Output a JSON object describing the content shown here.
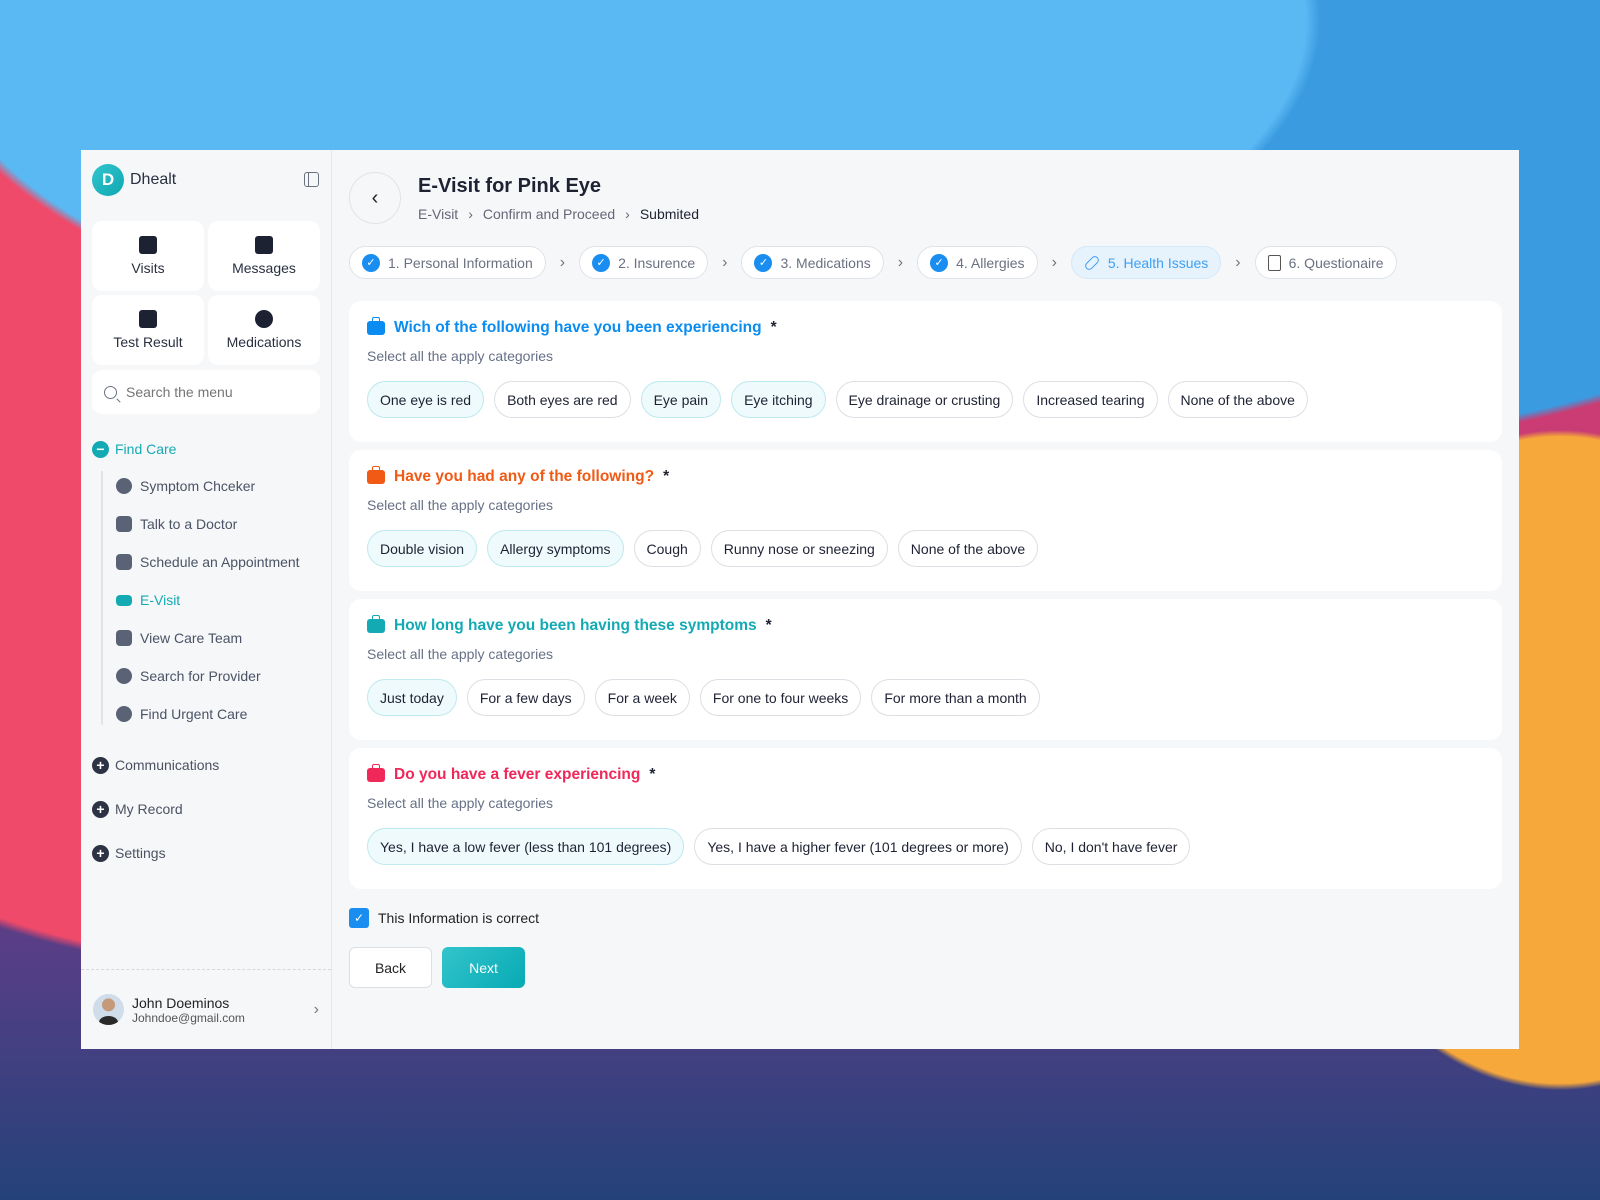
{
  "colors": {
    "accent": "#14aab4",
    "blue": "#1a8ef0",
    "q1": "#0a8cf0",
    "q2": "#f05a14",
    "q3": "#14aab4",
    "q4": "#f0285a"
  },
  "sidebar": {
    "brand": "Dhealt",
    "brand_initial": "D",
    "tiles": [
      {
        "label": "Visits",
        "icon": "calendar-icon"
      },
      {
        "label": "Messages",
        "icon": "envelope-icon"
      },
      {
        "label": "Test Result",
        "icon": "document-icon"
      },
      {
        "label": "Medications",
        "icon": "plus-circle-icon"
      }
    ],
    "search_placeholder": "Search the menu",
    "find_care": "Find Care",
    "items": [
      {
        "label": "Symptom Chceker",
        "icon": "accessibility-icon"
      },
      {
        "label": "Talk to a Doctor",
        "icon": "phone-icon"
      },
      {
        "label": "Schedule an Appointment",
        "icon": "calendar-icon"
      },
      {
        "label": "E-Visit",
        "icon": "card-icon",
        "active": true
      },
      {
        "label": "View Care Team",
        "icon": "users-icon"
      },
      {
        "label": "Search for Provider",
        "icon": "search-icon"
      },
      {
        "label": "Find Urgent Care",
        "icon": "location-icon"
      }
    ],
    "sections": [
      "Communications",
      "My Record",
      "Settings"
    ],
    "user": {
      "name": "John Doeminos",
      "email": "Johndoe@gmail.com"
    }
  },
  "header": {
    "title": "E-Visit for Pink Eye",
    "breadcrumb": [
      "E-Visit",
      "Confirm and Proceed",
      "Submited"
    ]
  },
  "steps": [
    {
      "label": "1. Personal Information",
      "state": "done"
    },
    {
      "label": "2. Insurence",
      "state": "done"
    },
    {
      "label": "3. Medications",
      "state": "done"
    },
    {
      "label": "4. Allergies",
      "state": "done"
    },
    {
      "label": "5. Health Issues",
      "state": "current"
    },
    {
      "label": "6. Questionaire",
      "state": "todo"
    }
  ],
  "questions": [
    {
      "title": "Wich of the following have you been experiencing",
      "color": "#0a8cf0",
      "hint": "Select all the apply categories",
      "options": [
        {
          "label": "One eye is red",
          "selected": true
        },
        {
          "label": "Both eyes are red",
          "selected": false
        },
        {
          "label": "Eye pain",
          "selected": true
        },
        {
          "label": "Eye itching",
          "selected": true
        },
        {
          "label": "Eye drainage or crusting",
          "selected": false
        },
        {
          "label": "Increased tearing",
          "selected": false
        },
        {
          "label": "None of the above",
          "selected": false
        }
      ]
    },
    {
      "title": "Have you had any of the following?",
      "color": "#f05a14",
      "hint": "Select all the apply categories",
      "options": [
        {
          "label": "Double vision",
          "selected": true
        },
        {
          "label": "Allergy symptoms",
          "selected": true
        },
        {
          "label": "Cough",
          "selected": false
        },
        {
          "label": "Runny nose or sneezing",
          "selected": false
        },
        {
          "label": "None of the above",
          "selected": false
        }
      ]
    },
    {
      "title": "How long have you been having these symptoms",
      "color": "#14aab4",
      "hint": "Select all the apply categories",
      "options": [
        {
          "label": "Just today",
          "selected": true
        },
        {
          "label": "For a few days",
          "selected": false
        },
        {
          "label": "For a week",
          "selected": false
        },
        {
          "label": "For one to four weeks",
          "selected": false
        },
        {
          "label": "For more than a month",
          "selected": false
        }
      ]
    },
    {
      "title": "Do you have a fever experiencing",
      "color": "#f0285a",
      "hint": "Select all the apply categories",
      "options": [
        {
          "label": "Yes, I have a low fever (less than 101 degrees)",
          "selected": true
        },
        {
          "label": "Yes, I have a higher fever (101 degrees or more)",
          "selected": false
        },
        {
          "label": "No, I don't have fever",
          "selected": false
        }
      ]
    }
  ],
  "required_mark": "*",
  "confirm": {
    "label": "This Information is correct",
    "checked": true
  },
  "buttons": {
    "back": "Back",
    "next": "Next"
  }
}
